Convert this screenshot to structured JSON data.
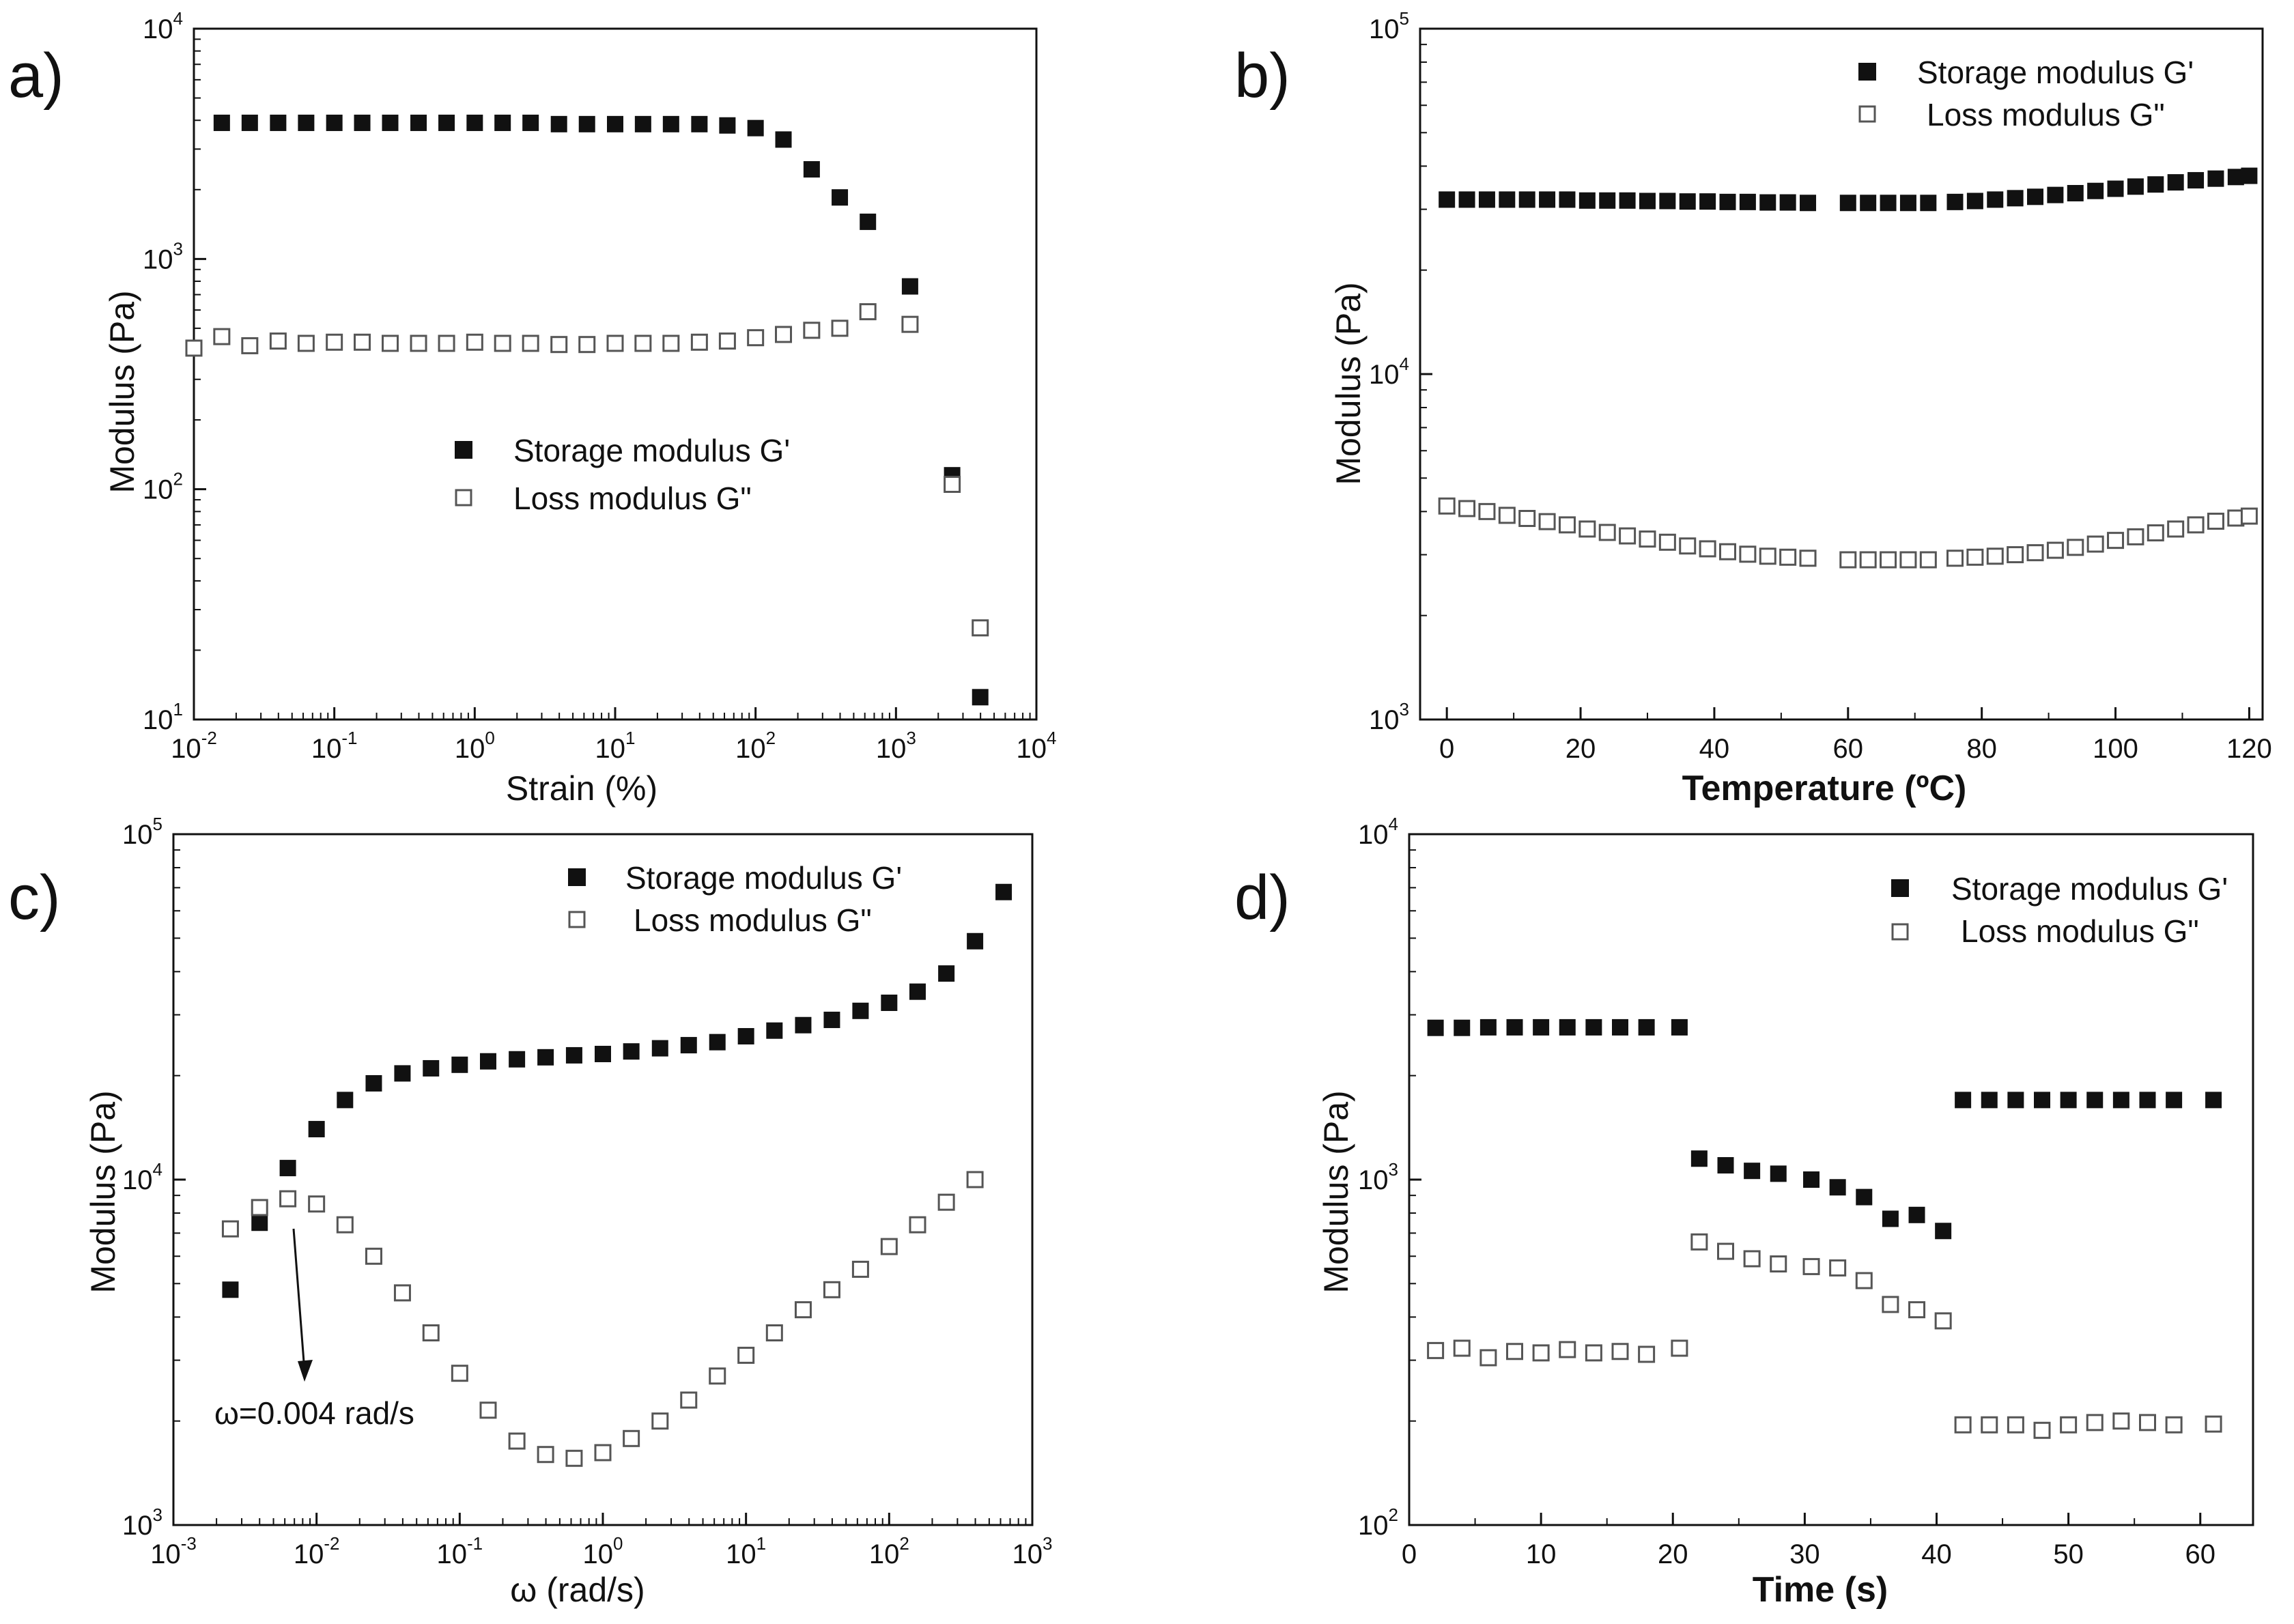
{
  "chart_data": [
    {
      "panel": "a)",
      "type": "scatter",
      "xscale": "log",
      "yscale": "log",
      "xlabel": "Strain (%)",
      "ylabel": "Modulus (Pa)",
      "xlim": [
        0.01,
        10000
      ],
      "ylim": [
        10,
        10000
      ],
      "xticks": [
        0.01,
        0.1,
        1,
        10,
        100,
        1000,
        10000
      ],
      "xtick_labels": [
        [
          "10",
          "-2"
        ],
        [
          "10",
          "-1"
        ],
        [
          "10",
          "0"
        ],
        [
          "10",
          "1"
        ],
        [
          "10",
          "2"
        ],
        [
          "10",
          "3"
        ],
        [
          "10",
          "4"
        ]
      ],
      "yticks": [
        10,
        100,
        1000,
        10000
      ],
      "ytick_labels": [
        [
          "10",
          "1"
        ],
        [
          "10",
          "2"
        ],
        [
          "10",
          "3"
        ],
        [
          "10",
          "4"
        ]
      ],
      "legend_position": "center",
      "series": [
        {
          "name": "Storage modulus G'",
          "marker": "filled-square",
          "x": [
            0.0158,
            0.025,
            0.0398,
            0.063,
            0.1,
            0.158,
            0.25,
            0.398,
            0.63,
            1,
            1.58,
            2.5,
            3.98,
            6.3,
            10,
            15.8,
            25,
            39.8,
            63,
            100,
            158,
            251,
            398,
            631,
            1259,
            2512,
            3981
          ],
          "y": [
            3900,
            3900,
            3900,
            3900,
            3900,
            3900,
            3900,
            3900,
            3900,
            3900,
            3900,
            3900,
            3850,
            3850,
            3850,
            3850,
            3850,
            3850,
            3800,
            3700,
            3300,
            2450,
            1850,
            1450,
            760,
            115,
            12.5
          ]
        },
        {
          "name": "Loss modulus G\"",
          "marker": "open-square",
          "x": [
            0.01,
            0.0158,
            0.025,
            0.0398,
            0.063,
            0.1,
            0.158,
            0.25,
            0.398,
            0.63,
            1,
            1.58,
            2.5,
            3.98,
            6.3,
            10,
            15.8,
            25,
            39.8,
            63,
            100,
            158,
            251,
            398,
            631,
            1259,
            2512,
            3981
          ],
          "y": [
            410,
            460,
            420,
            440,
            430,
            435,
            435,
            430,
            430,
            430,
            435,
            430,
            430,
            425,
            425,
            430,
            430,
            430,
            435,
            440,
            455,
            470,
            490,
            500,
            590,
            520,
            105,
            25
          ]
        }
      ]
    },
    {
      "panel": "b)",
      "type": "scatter",
      "xscale": "linear",
      "yscale": "log",
      "xlabel": "Temperature (ºC)",
      "ylabel": "Modulus (Pa)",
      "xlim": [
        -4,
        122
      ],
      "ylim": [
        1000,
        100000
      ],
      "xticks": [
        0,
        20,
        40,
        60,
        80,
        100,
        120
      ],
      "xtick_labels": [
        [
          "0",
          ""
        ],
        [
          "20",
          ""
        ],
        [
          "40",
          ""
        ],
        [
          "60",
          ""
        ],
        [
          "80",
          ""
        ],
        [
          "100",
          ""
        ],
        [
          "120",
          ""
        ]
      ],
      "yticks": [
        1000,
        10000,
        100000
      ],
      "ytick_labels": [
        [
          "10",
          "3"
        ],
        [
          "10",
          "4"
        ],
        [
          "10",
          "5"
        ]
      ],
      "legend_position": "top-right",
      "series": [
        {
          "name": "Storage modulus G'",
          "marker": "filled-square",
          "x": [
            0,
            3,
            6,
            9,
            12,
            15,
            18,
            21,
            24,
            27,
            30,
            33,
            36,
            39,
            42,
            45,
            48,
            51,
            54,
            60,
            63,
            66,
            69,
            72,
            76,
            79,
            82,
            85,
            88,
            91,
            94,
            97,
            100,
            103,
            106,
            109,
            112,
            115,
            118,
            120
          ],
          "y": [
            32000,
            32000,
            32000,
            32000,
            32000,
            32000,
            32000,
            31800,
            31800,
            31800,
            31700,
            31700,
            31600,
            31600,
            31500,
            31500,
            31400,
            31400,
            31300,
            31300,
            31300,
            31300,
            31300,
            31300,
            31500,
            31700,
            32000,
            32300,
            32600,
            33000,
            33400,
            33900,
            34400,
            34900,
            35400,
            35900,
            36400,
            36800,
            37200,
            37500
          ]
        },
        {
          "name": "Loss modulus G\"",
          "marker": "open-square",
          "x": [
            0,
            3,
            6,
            9,
            12,
            15,
            18,
            21,
            24,
            27,
            30,
            33,
            36,
            39,
            42,
            45,
            48,
            51,
            54,
            60,
            63,
            66,
            69,
            72,
            76,
            79,
            82,
            85,
            88,
            91,
            94,
            97,
            100,
            103,
            106,
            109,
            112,
            115,
            118,
            120
          ],
          "y": [
            4150,
            4080,
            4000,
            3900,
            3820,
            3740,
            3660,
            3560,
            3480,
            3400,
            3330,
            3260,
            3180,
            3120,
            3060,
            3010,
            2970,
            2950,
            2930,
            2900,
            2900,
            2900,
            2900,
            2900,
            2930,
            2950,
            2970,
            3000,
            3040,
            3090,
            3150,
            3220,
            3300,
            3380,
            3470,
            3560,
            3660,
            3750,
            3830,
            3880
          ]
        }
      ]
    },
    {
      "panel": "c)",
      "type": "scatter",
      "xscale": "log",
      "yscale": "log",
      "xlabel": "ω (rad/s)",
      "ylabel": "Modulus (Pa)",
      "xlim": [
        0.001,
        1000
      ],
      "ylim": [
        1000,
        100000
      ],
      "xticks": [
        0.001,
        0.01,
        0.1,
        1,
        10,
        100,
        1000
      ],
      "xtick_labels": [
        [
          "10",
          "-3"
        ],
        [
          "10",
          "-2"
        ],
        [
          "10",
          "-1"
        ],
        [
          "10",
          "0"
        ],
        [
          "10",
          "1"
        ],
        [
          "10",
          "2"
        ],
        [
          "10",
          "3"
        ]
      ],
      "yticks": [
        1000,
        10000,
        100000
      ],
      "ytick_labels": [
        [
          "10",
          "3"
        ],
        [
          "10",
          "4"
        ],
        [
          "10",
          "5"
        ]
      ],
      "legend_position": "top-right",
      "annotation": {
        "text": "ω=0.004 rad/s",
        "x": 0.0063,
        "y": 8800
      },
      "series": [
        {
          "name": "Storage modulus G'",
          "marker": "filled-square",
          "x": [
            0.0025,
            0.004,
            0.0063,
            0.01,
            0.0158,
            0.0251,
            0.0398,
            0.063,
            0.1,
            0.158,
            0.251,
            0.398,
            0.63,
            1,
            1.58,
            2.51,
            3.98,
            6.31,
            10,
            15.8,
            25.1,
            39.8,
            63.1,
            100,
            158,
            251,
            398,
            631
          ],
          "y": [
            4800,
            7500,
            10800,
            14000,
            17000,
            19000,
            20300,
            21000,
            21500,
            22000,
            22300,
            22600,
            22900,
            23100,
            23500,
            24000,
            24500,
            25000,
            26000,
            27000,
            28000,
            29000,
            30800,
            32500,
            35000,
            39500,
            49000,
            68000
          ]
        },
        {
          "name": "Loss modulus G\"",
          "marker": "open-square",
          "x": [
            0.0025,
            0.004,
            0.0063,
            0.01,
            0.0158,
            0.0251,
            0.0398,
            0.063,
            0.1,
            0.158,
            0.251,
            0.398,
            0.63,
            1,
            1.58,
            2.51,
            3.98,
            6.31,
            10,
            15.8,
            25.1,
            39.8,
            63.1,
            100,
            158,
            251,
            398
          ],
          "y": [
            7200,
            8300,
            8800,
            8500,
            7400,
            6000,
            4700,
            3600,
            2750,
            2150,
            1750,
            1600,
            1560,
            1620,
            1780,
            2000,
            2300,
            2700,
            3100,
            3600,
            4200,
            4800,
            5500,
            6400,
            7400,
            8600,
            10000
          ]
        }
      ]
    },
    {
      "panel": "d)",
      "type": "scatter",
      "xscale": "linear",
      "yscale": "log",
      "xlabel": "Time (s)",
      "ylabel": "Modulus (Pa)",
      "xlim": [
        0,
        64
      ],
      "ylim": [
        100,
        10000
      ],
      "xticks": [
        0,
        10,
        20,
        30,
        40,
        50,
        60
      ],
      "xtick_labels": [
        [
          "0",
          ""
        ],
        [
          "10",
          ""
        ],
        [
          "20",
          ""
        ],
        [
          "30",
          ""
        ],
        [
          "40",
          ""
        ],
        [
          "50",
          ""
        ],
        [
          "60",
          ""
        ]
      ],
      "yticks": [
        100,
        1000,
        10000
      ],
      "ytick_labels": [
        [
          "10",
          "2"
        ],
        [
          "10",
          "3"
        ],
        [
          "10",
          "4"
        ]
      ],
      "legend_position": "top-right",
      "series": [
        {
          "name": "Storage modulus G'",
          "marker": "filled-square",
          "x": [
            2,
            4,
            6,
            8,
            10,
            12,
            14,
            16,
            18,
            20.5,
            22,
            24,
            26,
            28,
            30.5,
            32.5,
            34.5,
            36.5,
            38.5,
            40.5,
            42,
            44,
            46,
            48,
            50,
            52,
            54,
            56,
            58,
            61
          ],
          "y": [
            2750,
            2750,
            2760,
            2760,
            2760,
            2760,
            2760,
            2760,
            2760,
            2760,
            1150,
            1100,
            1060,
            1040,
            1000,
            950,
            890,
            770,
            790,
            710,
            1700,
            1700,
            1700,
            1700,
            1700,
            1700,
            1700,
            1700,
            1700,
            1700
          ]
        },
        {
          "name": "Loss modulus G\"",
          "marker": "open-square",
          "x": [
            2,
            4,
            6,
            8,
            10,
            12,
            14,
            16,
            18,
            20.5,
            22,
            24,
            26,
            28,
            30.5,
            32.5,
            34.5,
            36.5,
            38.5,
            40.5,
            42,
            44,
            46,
            48,
            50,
            52,
            54,
            56,
            58,
            61
          ],
          "y": [
            320,
            325,
            305,
            318,
            315,
            322,
            315,
            318,
            312,
            325,
            660,
            620,
            590,
            570,
            560,
            555,
            510,
            435,
            420,
            390,
            195,
            195,
            195,
            188,
            195,
            198,
            200,
            198,
            195,
            196
          ]
        }
      ]
    }
  ]
}
